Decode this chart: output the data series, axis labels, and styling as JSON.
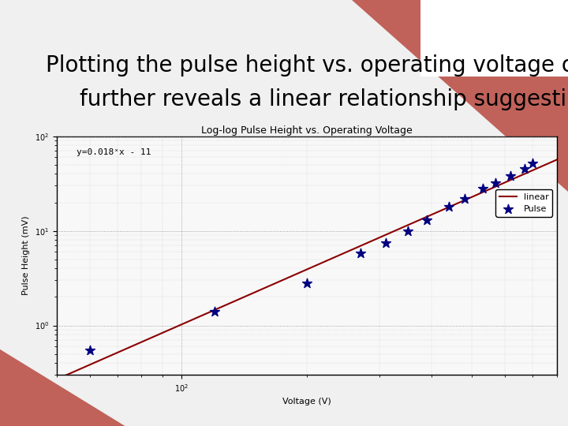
{
  "slide_title_line1": "Plotting the pulse height vs. operating voltage on a log-log scale",
  "slide_title_line2": "further reveals a linear relationship suggesting a power law.",
  "chart_title": "Log-log Pulse Height vs. Operating Voltage",
  "xlabel": "Voltage (V)",
  "ylabel": "Pulse Height (mV)",
  "annotation": "y=0.018ˣx - 11",
  "legend_entries": [
    "Pulse",
    "linear"
  ],
  "data_x": [
    60,
    120,
    200,
    270,
    310,
    350,
    390,
    440,
    480,
    530,
    570,
    620,
    670,
    700
  ],
  "data_y": [
    0.55,
    1.4,
    2.8,
    5.8,
    7.5,
    10.0,
    13.0,
    18.0,
    22.0,
    28.0,
    32.0,
    38.0,
    45.0,
    52.0
  ],
  "xlim": [
    50,
    800
  ],
  "ylim": [
    0.3,
    100
  ],
  "marker_color": "#000080",
  "line_color": "#8B0000",
  "chart_bg": "#f8f8f8",
  "slide_bg": "#f0f0f0",
  "title_fontsize": 20,
  "chart_title_fontsize": 9,
  "label_fontsize": 8,
  "annotation_fontsize": 8,
  "legend_fontsize": 8,
  "tick_fontsize": 7
}
